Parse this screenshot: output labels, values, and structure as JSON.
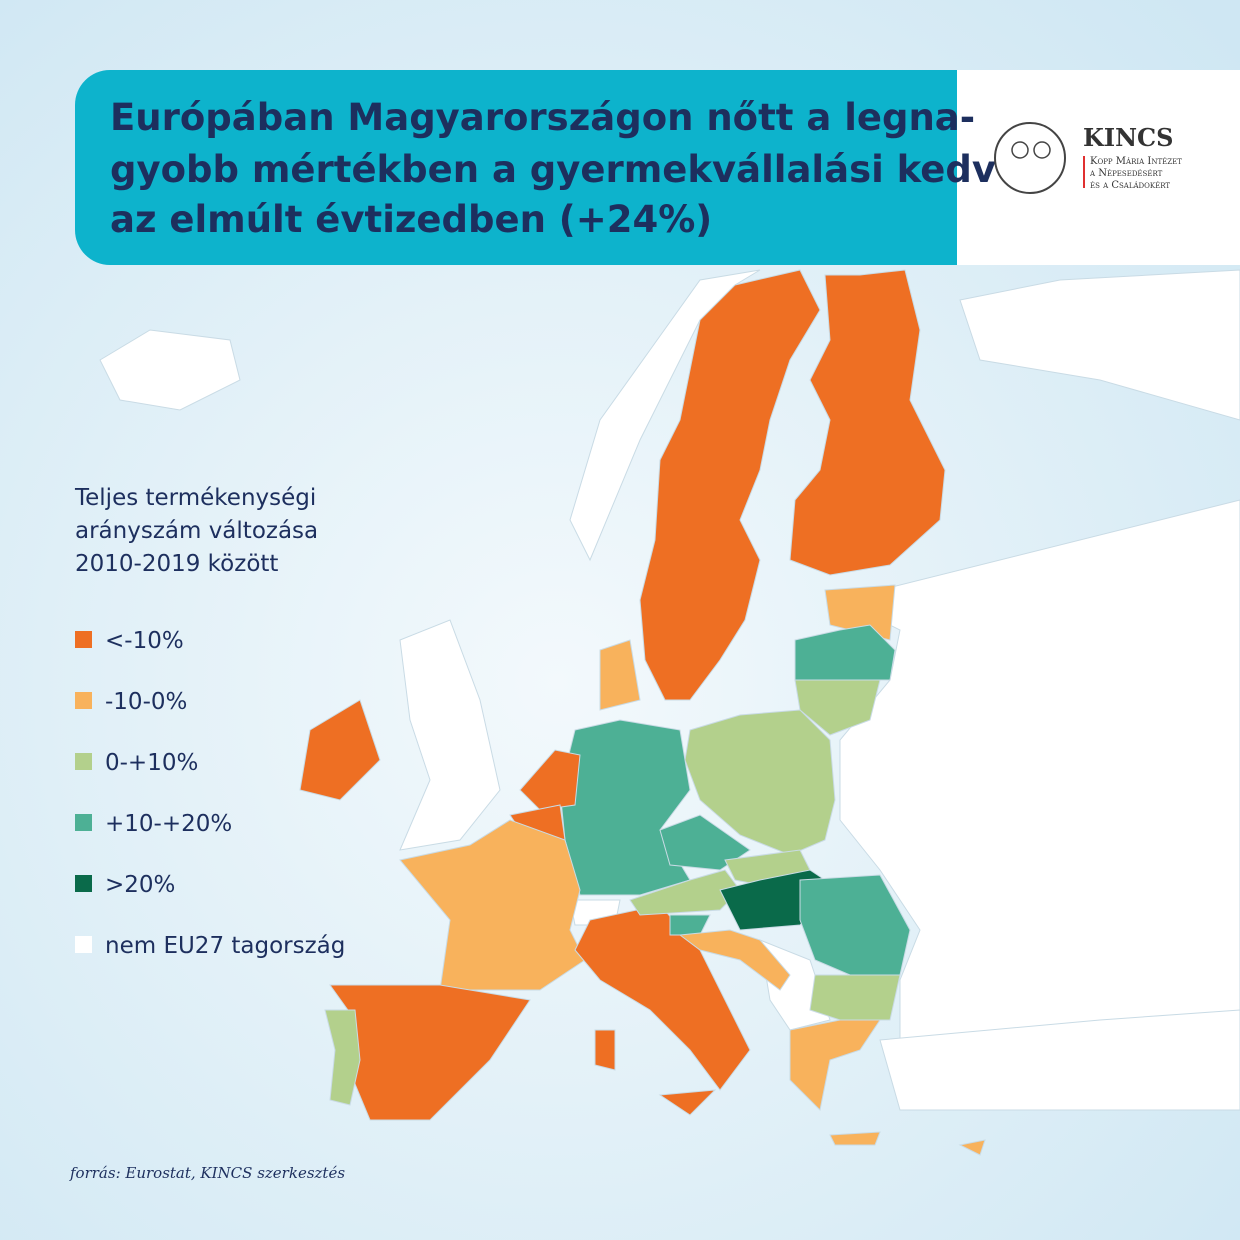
{
  "header": {
    "title_lines": [
      "Európában Magyarországon nőtt a legna-",
      "gyobb mértékben a gyermekvállalási kedv",
      "az elmúlt évtizedben (+24%)"
    ]
  },
  "logo": {
    "name": "KINCS",
    "lines": [
      "Kopp Mária Intézet",
      "a Népesedésért",
      "és a Családokért"
    ]
  },
  "legend": {
    "title_lines": [
      "Teljes termékenységi",
      "arányszám változása",
      "2010-2019 között"
    ],
    "items": [
      {
        "label": "<-10%",
        "color": "#ee6f23"
      },
      {
        "label": "-10-0%",
        "color": "#f8b25c"
      },
      {
        "label": "0-+10%",
        "color": "#b3d08c"
      },
      {
        "label": "+10-+20%",
        "color": "#4db095"
      },
      {
        "label": ">20%",
        "color": "#0a6a4a"
      },
      {
        "label": "nem EU27 tagország",
        "color": "#ffffff"
      }
    ]
  },
  "source": "forrás: Eurostat, KINCS szerkesztés"
}
